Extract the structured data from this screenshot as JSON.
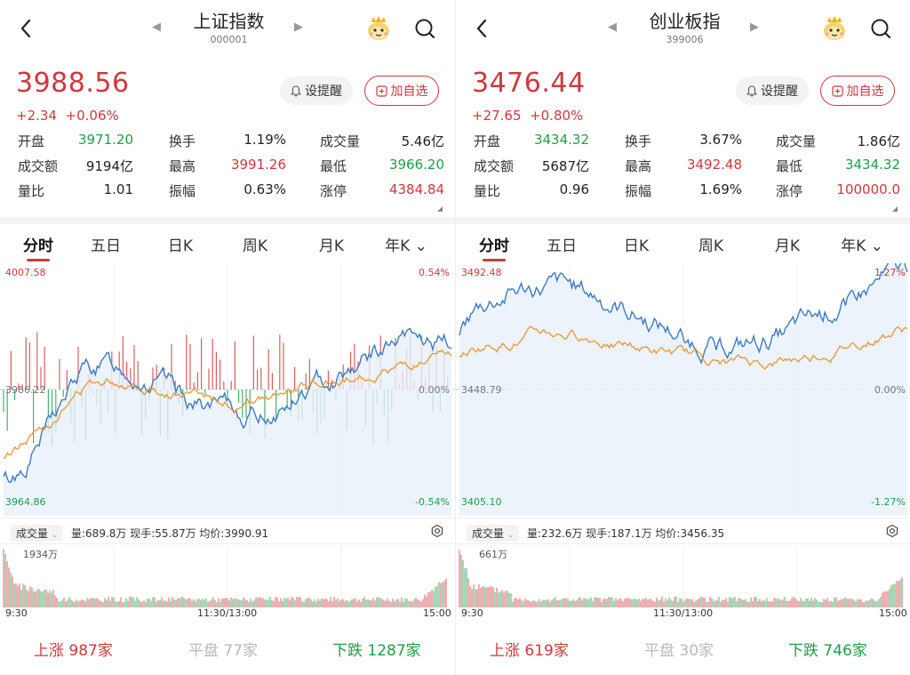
{
  "panels": [
    {
      "title": "上证指数",
      "code": "000001",
      "price": "3988.56",
      "change": "+2.34",
      "change_pct": "+0.06%",
      "alert_label": "设提醒",
      "add_label": "加自选",
      "stats": [
        {
          "label": "开盘",
          "value": "3971.20",
          "color": "#1f9e4a"
        },
        {
          "label": "换手",
          "value": "1.19%",
          "color": "#222222"
        },
        {
          "label": "成交量",
          "value": "5.46亿",
          "color": "#222222"
        },
        {
          "label": "成交额",
          "value": "9194亿",
          "color": "#222222"
        },
        {
          "label": "最高",
          "value": "3991.26",
          "color": "#d0383e"
        },
        {
          "label": "最低",
          "value": "3966.20",
          "color": "#1f9e4a"
        },
        {
          "label": "量比",
          "value": "1.01",
          "color": "#222222"
        },
        {
          "label": "振幅",
          "value": "0.63%",
          "color": "#222222"
        },
        {
          "label": "涨停",
          "value": "4384.84",
          "color": "#d0383e"
        }
      ],
      "tabs": [
        "分时",
        "五日",
        "日K",
        "周K",
        "月K",
        "年K"
      ],
      "chart": {
        "top_left": "4007.58",
        "mid_left": "3986.22",
        "bottom_left": "3964.86",
        "top_right": "0.54%",
        "mid_right": "0.00%",
        "bottom_right": "-0.54%"
      },
      "vol_tag": "成交量",
      "vol_info": "量:689.8万 现手:55.87万 均价:3990.91",
      "vol_max": "1934万",
      "time_start": "9:30",
      "time_mid": "11:30/13:00",
      "time_end": "15:00",
      "up_label": "上涨",
      "up_count": "987家",
      "flat_label": "平盘",
      "flat_count": "77家",
      "down_label": "下跌",
      "down_count": "1287家"
    },
    {
      "title": "创业板指",
      "code": "399006",
      "price": "3476.44",
      "change": "+27.65",
      "change_pct": "+0.80%",
      "alert_label": "设提醒",
      "add_label": "加自选",
      "stats": [
        {
          "label": "开盘",
          "value": "3434.32",
          "color": "#1f9e4a"
        },
        {
          "label": "换手",
          "value": "3.67%",
          "color": "#222222"
        },
        {
          "label": "成交量",
          "value": "1.86亿",
          "color": "#222222"
        },
        {
          "label": "成交额",
          "value": "5687亿",
          "color": "#222222"
        },
        {
          "label": "最高",
          "value": "3492.48",
          "color": "#d0383e"
        },
        {
          "label": "最低",
          "value": "3434.32",
          "color": "#1f9e4a"
        },
        {
          "label": "量比",
          "value": "0.96",
          "color": "#222222"
        },
        {
          "label": "振幅",
          "value": "1.69%",
          "color": "#222222"
        },
        {
          "label": "涨停",
          "value": "100000.0",
          "color": "#d0383e"
        }
      ],
      "tabs": [
        "分时",
        "五日",
        "日K",
        "周K",
        "月K",
        "年K"
      ],
      "chart": {
        "top_left": "3492.48",
        "mid_left": "3448.79",
        "bottom_left": "3405.10",
        "top_right": "1.27%",
        "mid_right": "0.00%",
        "bottom_right": "-1.27%"
      },
      "vol_tag": "成交量",
      "vol_info": "量:232.6万 现手:187.1万 均价:3456.35",
      "vol_max": "661万",
      "time_start": "9:30",
      "time_mid": "11:30/13:00",
      "time_end": "15:00",
      "up_label": "上涨",
      "up_count": "619家",
      "flat_label": "平盘",
      "flat_count": "30家",
      "down_label": "下跌",
      "down_count": "746家"
    }
  ],
  "colors": {
    "up": "#d0383e",
    "down": "#1f9e4a",
    "price_line": "#3e7bbf",
    "avg_line": "#e8963a",
    "muted": "#b9b9b9"
  }
}
